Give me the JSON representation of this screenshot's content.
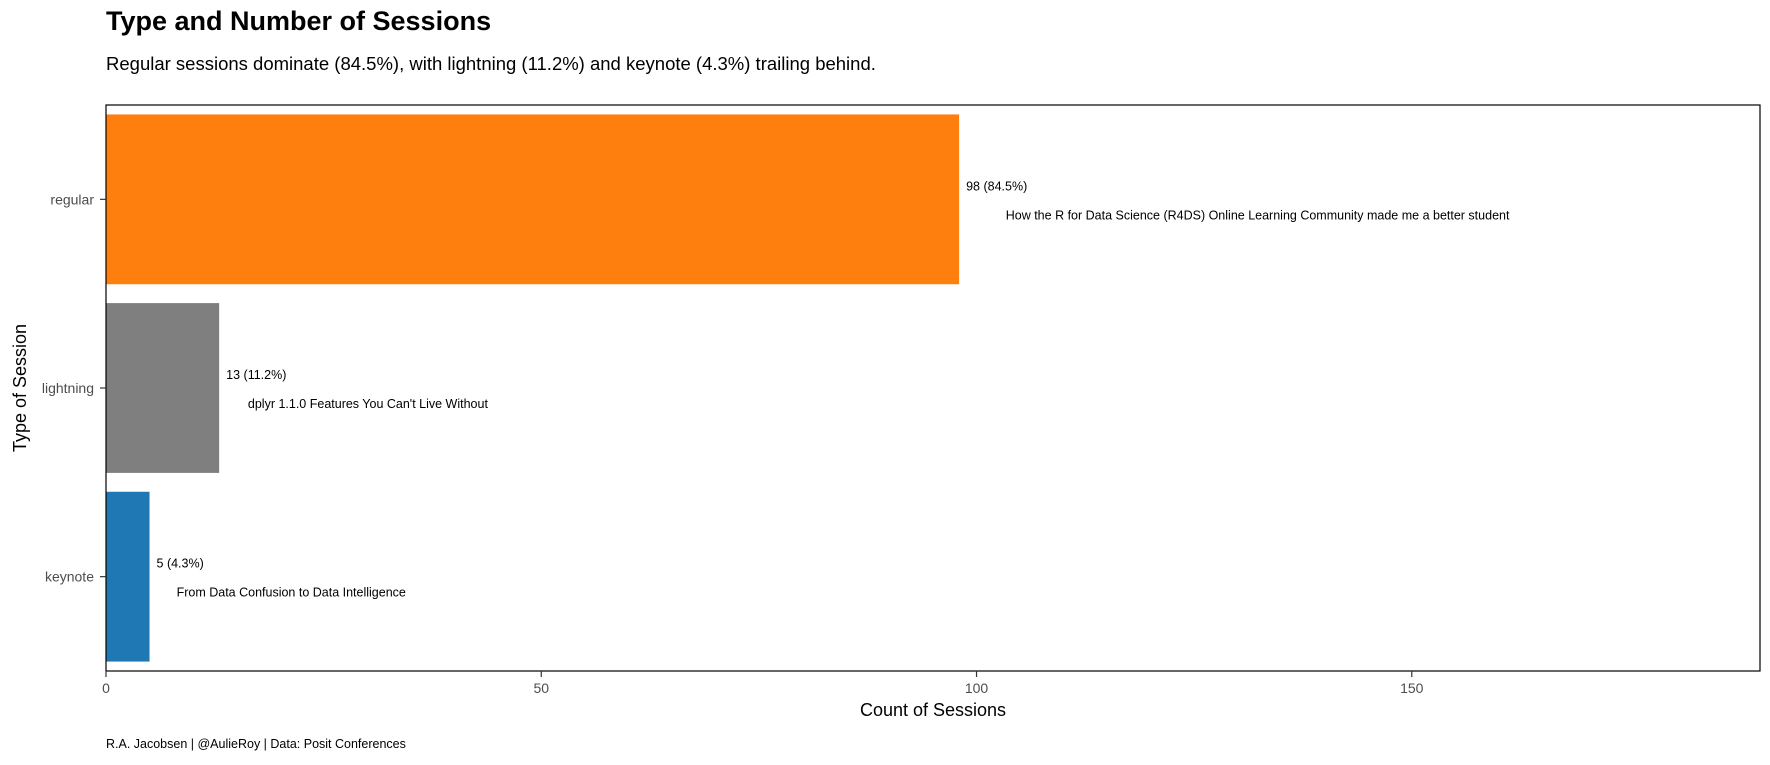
{
  "chart_data": {
    "type": "bar",
    "orientation": "horizontal",
    "title": "Type and Number of Sessions",
    "subtitle": "Regular sessions dominate (84.5%), with lightning (11.2%) and keynote (4.3%) trailing behind.",
    "caption": "R.A. Jacobsen | @AulieRoy | Data: Posit Conferences",
    "xlabel": "Count of Sessions",
    "ylabel": "Type of Session",
    "xlim": [
      0,
      190
    ],
    "xticks": [
      0,
      50,
      100,
      150
    ],
    "grid": false,
    "legend": "none",
    "categories": [
      "regular",
      "lightning",
      "keynote"
    ],
    "values": [
      98,
      13,
      5
    ],
    "value_labels": [
      "98 (84.5%)",
      "13 (11.2%)",
      "5 (4.3%)"
    ],
    "session_titles": [
      "How the R for Data Science (R4DS) Online Learning Community made me a better student",
      "dplyr 1.1.0 Features You Can't Live Without",
      "From Data Confusion to Data Intelligence"
    ],
    "colors": [
      "#ff7f0e",
      "#7f7f7f",
      "#1f77b4"
    ]
  }
}
